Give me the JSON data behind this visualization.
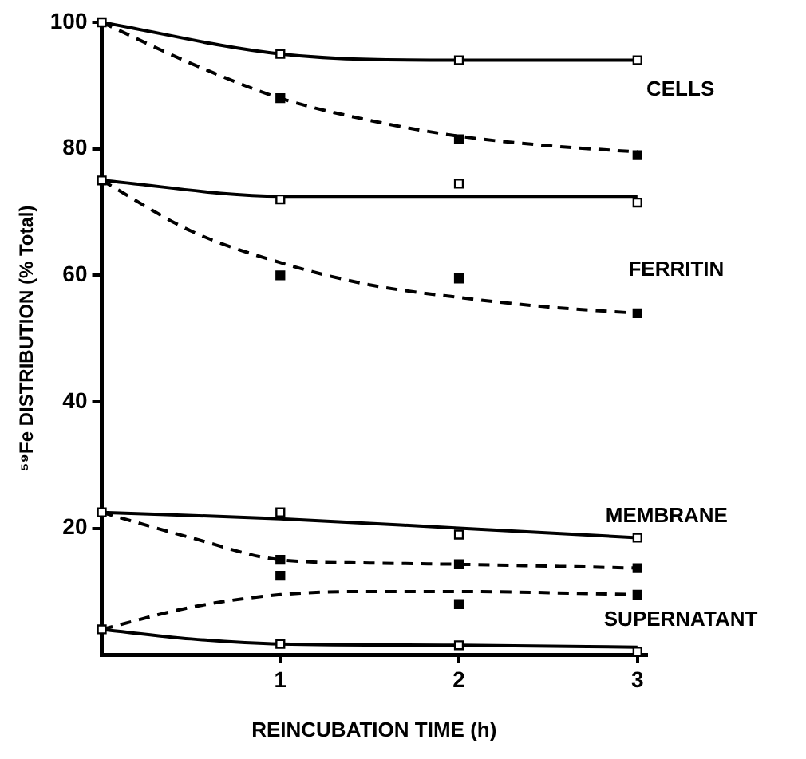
{
  "chart_data": {
    "type": "line",
    "xlabel": "REINCUBATION TIME (h)",
    "ylabel": "⁵⁹Fe DISTRIBUTION (% Total)",
    "xlim": [
      0,
      3.05
    ],
    "xticks": [
      1,
      2,
      3
    ],
    "ylim": [
      0,
      100
    ],
    "yticks": [
      20,
      40,
      60,
      80,
      100
    ],
    "grid": false,
    "legend": false,
    "series": [
      {
        "type": "line",
        "line_style": "solid",
        "marker": "none",
        "color": "#000000",
        "x": [
          0,
          1,
          2,
          3
        ],
        "values": [
          100,
          95,
          94,
          94
        ]
      },
      {
        "type": "line",
        "line_style": "dashed",
        "marker": "none",
        "color": "#000000",
        "x": [
          0,
          0.5,
          1,
          1.5,
          2,
          2.5,
          3
        ],
        "values": [
          100,
          93.5,
          88,
          84.5,
          82,
          80.5,
          79.5
        ]
      },
      {
        "type": "line",
        "line_style": "solid",
        "marker": "none",
        "color": "#000000",
        "x": [
          0,
          1,
          3
        ],
        "values": [
          75,
          72.5,
          72.5
        ]
      },
      {
        "type": "line",
        "line_style": "dashed",
        "marker": "none",
        "color": "#000000",
        "x": [
          0,
          0.5,
          1,
          1.5,
          2,
          2.5,
          3
        ],
        "values": [
          75,
          67,
          62,
          58.5,
          56.5,
          55,
          54
        ]
      },
      {
        "type": "line",
        "line_style": "solid",
        "marker": "none",
        "color": "#000000",
        "x": [
          0,
          1,
          2,
          3
        ],
        "values": [
          22.5,
          21.5,
          20,
          18.5
        ]
      },
      {
        "type": "line",
        "line_style": "dashed",
        "marker": "none",
        "color": "#000000",
        "x": [
          0,
          0.5,
          1,
          1.5,
          2,
          3
        ],
        "values": [
          22.5,
          18.5,
          15,
          14.5,
          14.3,
          13.7
        ]
      },
      {
        "type": "line",
        "line_style": "dashed",
        "marker": "none",
        "color": "#000000",
        "x": [
          0,
          0.5,
          1,
          1.5,
          2,
          3
        ],
        "values": [
          4,
          7.5,
          9.5,
          10,
          10,
          9.5
        ]
      },
      {
        "type": "line",
        "line_style": "solid",
        "marker": "none",
        "color": "#000000",
        "x": [
          0,
          0.5,
          1,
          2,
          3
        ],
        "values": [
          4,
          2.5,
          1.7,
          1.5,
          1.2
        ]
      },
      {
        "type": "scatter",
        "marker": "square",
        "color": "#ffffff",
        "x": [
          0,
          1,
          2,
          3,
          0,
          1,
          2,
          3,
          0,
          1,
          2,
          3,
          0,
          1,
          2,
          3
        ],
        "values": [
          100,
          95,
          94,
          94,
          75,
          72,
          74.5,
          71.5,
          22.5,
          22.5,
          19,
          18.5,
          4,
          1.7,
          1.5,
          0.5
        ]
      },
      {
        "type": "scatter",
        "marker": "square",
        "color": "#000000",
        "x": [
          1,
          2,
          3,
          1,
          2,
          3,
          1,
          1,
          2,
          3,
          2,
          3
        ],
        "values": [
          88,
          81.5,
          79,
          60,
          59.5,
          54,
          15,
          12.5,
          14.3,
          13.7,
          8,
          9.5
        ]
      }
    ],
    "annotations": [
      "CELLS",
      "FERRITIN",
      "MEMBRANE",
      "SUPERNATANT"
    ]
  }
}
